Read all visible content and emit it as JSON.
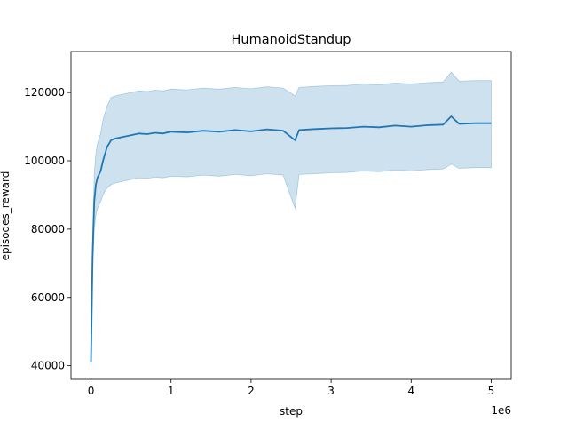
{
  "chart_data": {
    "type": "line",
    "title": "HumanoidStandup",
    "xlabel": "step",
    "ylabel": "episodes_reward",
    "x_offset_label": "1e6",
    "xlim": [
      -0.25,
      5.25
    ],
    "ylim": [
      36000,
      132000
    ],
    "x_ticks": [
      0,
      1,
      2,
      3,
      4,
      5
    ],
    "x_tick_labels": [
      "0",
      "1",
      "2",
      "3",
      "4",
      "5"
    ],
    "y_ticks": [
      40000,
      60000,
      80000,
      100000,
      120000
    ],
    "y_tick_labels": [
      "40000",
      "60000",
      "80000",
      "100000",
      "120000"
    ],
    "grid": false,
    "legend": "none",
    "colors": {
      "line": "#1f77b4",
      "band": "#1f77b4"
    },
    "series": [
      {
        "x": [
          0,
          0.02,
          0.04,
          0.06,
          0.08,
          0.1,
          0.12,
          0.15,
          0.2,
          0.25,
          0.3,
          0.4,
          0.5,
          0.6,
          0.7,
          0.8,
          0.9,
          1.0,
          1.2,
          1.4,
          1.6,
          1.8,
          2.0,
          2.2,
          2.4,
          2.55,
          2.6,
          2.8,
          3.0,
          3.2,
          3.4,
          3.6,
          3.8,
          4.0,
          4.2,
          4.4,
          4.5,
          4.6,
          4.8,
          5.0
        ],
        "mean": [
          41000,
          72000,
          88000,
          93000,
          95000,
          96000,
          97000,
          100000,
          104000,
          106000,
          106500,
          107000,
          107500,
          108000,
          107800,
          108200,
          108000,
          108500,
          108300,
          108800,
          108500,
          109000,
          108600,
          109200,
          108800,
          106000,
          109000,
          109300,
          109500,
          109600,
          110000,
          109800,
          110300,
          110000,
          110400,
          110600,
          113000,
          110800,
          111000,
          111000
        ],
        "lower": [
          40000,
          66000,
          80000,
          84000,
          86000,
          87000,
          88000,
          90000,
          92000,
          93000,
          93500,
          94000,
          94500,
          95000,
          94800,
          95200,
          95000,
          95500,
          95300,
          95800,
          95500,
          96000,
          95600,
          96200,
          95800,
          86000,
          96000,
          96200,
          96500,
          96600,
          97000,
          96800,
          97300,
          97000,
          97400,
          97600,
          99000,
          97800,
          98000,
          98000
        ],
        "upper": [
          42000,
          78000,
          96000,
          102000,
          105000,
          106500,
          108000,
          112000,
          116000,
          118500,
          119000,
          119500,
          120000,
          120500,
          120300,
          120700,
          120500,
          121000,
          120800,
          121300,
          121000,
          121500,
          121100,
          121700,
          121300,
          119000,
          121500,
          121800,
          122000,
          122100,
          122500,
          122300,
          122800,
          122500,
          122900,
          123100,
          126000,
          123300,
          123500,
          123500
        ]
      }
    ]
  }
}
